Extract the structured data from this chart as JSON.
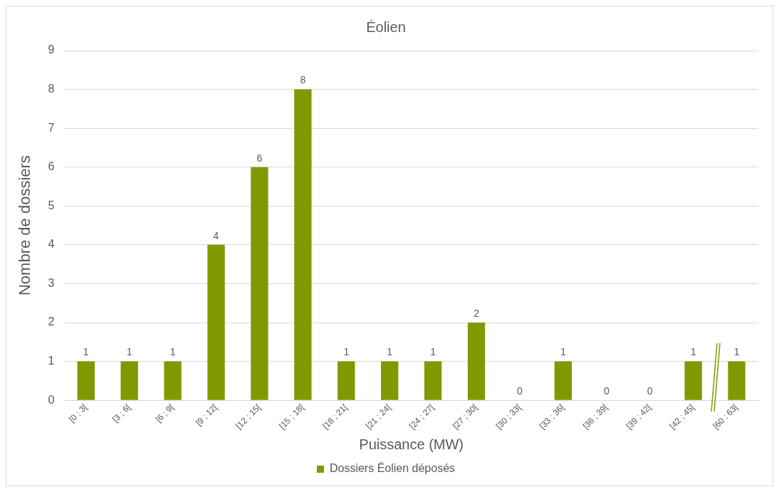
{
  "chart_data": {
    "type": "bar",
    "title": "Éolien",
    "xlabel": "Puissance (MW)",
    "ylabel": "Nombre de dossiers",
    "categories": [
      "[0 ; 3[",
      "[3 ; 6[",
      "[6 ; 9[",
      "[9 ; 12[",
      "[12 ; 15[",
      "[15 ; 18[",
      "[18 ; 21[",
      "[21 ; 24[",
      "[24 ; 27[",
      "[27 ; 30[",
      "[30 ; 33[",
      "[33 ; 36[",
      "[36 ; 39[",
      "[39 ; 42[",
      "[42 ; 45[",
      "[60 ; 63["
    ],
    "series": [
      {
        "name": "Dossiers Éolien déposés",
        "color": "#7f9a00",
        "values": [
          1,
          1,
          1,
          4,
          6,
          8,
          1,
          1,
          1,
          2,
          0,
          1,
          0,
          0,
          1,
          1
        ]
      }
    ],
    "ylim": [
      0,
      9
    ],
    "yticks": [
      0,
      1,
      2,
      3,
      4,
      5,
      6,
      7,
      8,
      9
    ],
    "grid": "y",
    "legend": "bottom",
    "data_labels": true
  }
}
